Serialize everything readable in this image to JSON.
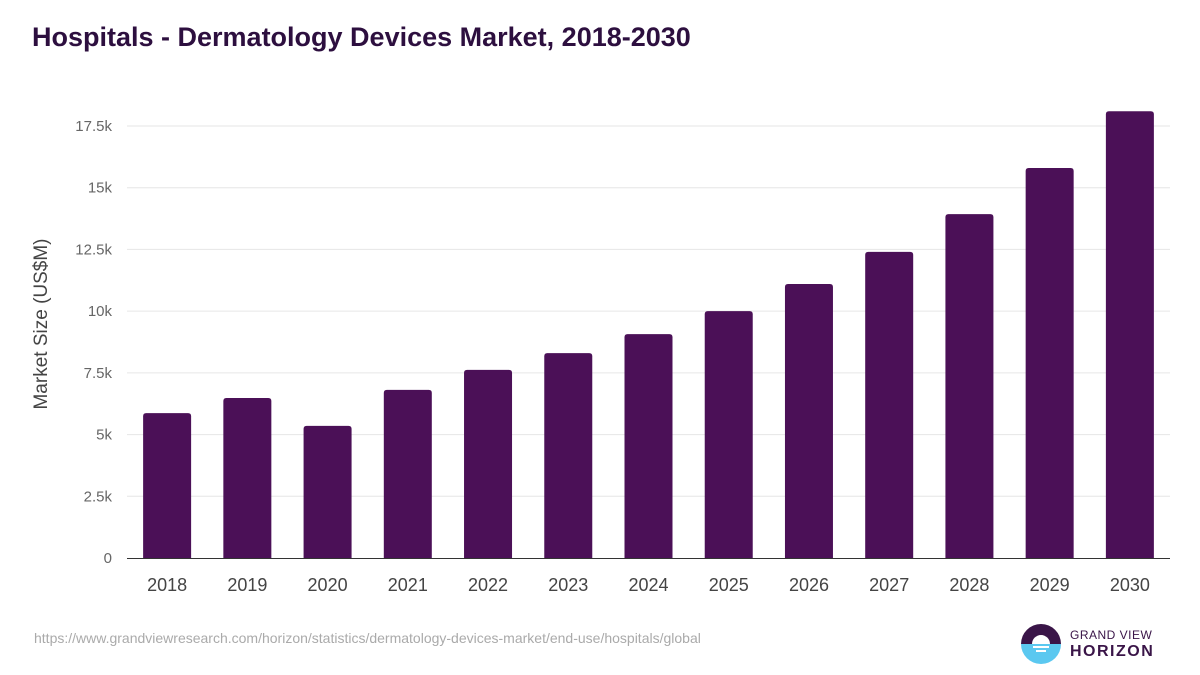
{
  "header": {
    "title": "Hospitals - Dermatology Devices Market, 2018-2030"
  },
  "footer": {
    "source": "https://www.grandviewresearch.com/horizon/statistics/dermatology-devices-market/end-use/hospitals/global",
    "logo_line1": "GRAND VIEW",
    "logo_line2": "HORIZON"
  },
  "colors": {
    "bar": "#4b1057",
    "title": "#2d0f3f"
  },
  "chart_data": {
    "type": "bar",
    "title": "Hospitals - Dermatology Devices Market, 2018-2030",
    "xlabel": "",
    "ylabel": "Market Size (US$M)",
    "categories": [
      "2018",
      "2019",
      "2020",
      "2021",
      "2022",
      "2023",
      "2024",
      "2025",
      "2026",
      "2027",
      "2028",
      "2029",
      "2030"
    ],
    "values": [
      5870,
      6480,
      5350,
      6810,
      7620,
      8300,
      9070,
      10000,
      11100,
      12400,
      13930,
      15800,
      18100
    ],
    "ylim": [
      0,
      17500
    ],
    "yticks": [
      0,
      2500,
      5000,
      7500,
      10000,
      12500,
      15000,
      17500
    ],
    "ytick_labels": [
      "0",
      "2.5k",
      "5k",
      "7.5k",
      "10k",
      "12.5k",
      "15k",
      "17.5k"
    ],
    "grid": true,
    "legend": "none"
  }
}
